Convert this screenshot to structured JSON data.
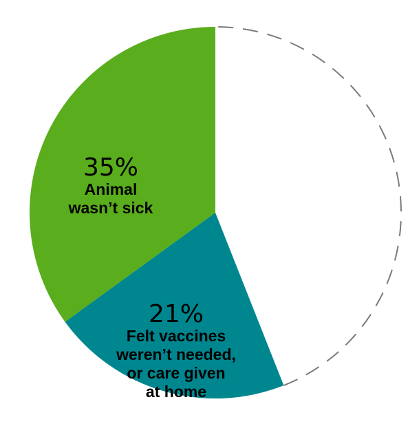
{
  "chart_data": {
    "type": "pie",
    "title": "",
    "slices": [
      {
        "percent_label": "35%",
        "lines": [
          "Animal",
          "wasn’t sick"
        ],
        "value": 35,
        "color": "#5aad1c",
        "filled": true
      },
      {
        "percent_label": "21%",
        "lines": [
          "Felt vaccines",
          "weren’t needed,",
          "or care given",
          "at home"
        ],
        "value": 21,
        "color": "#00868f",
        "filled": true
      },
      {
        "percent_label": "",
        "lines": [],
        "value": 44,
        "color": "#7a7a7a",
        "filled": false
      }
    ],
    "start_angle_deg": 0,
    "direction": "counterclockwise",
    "remainder_style": "dashed outline"
  }
}
